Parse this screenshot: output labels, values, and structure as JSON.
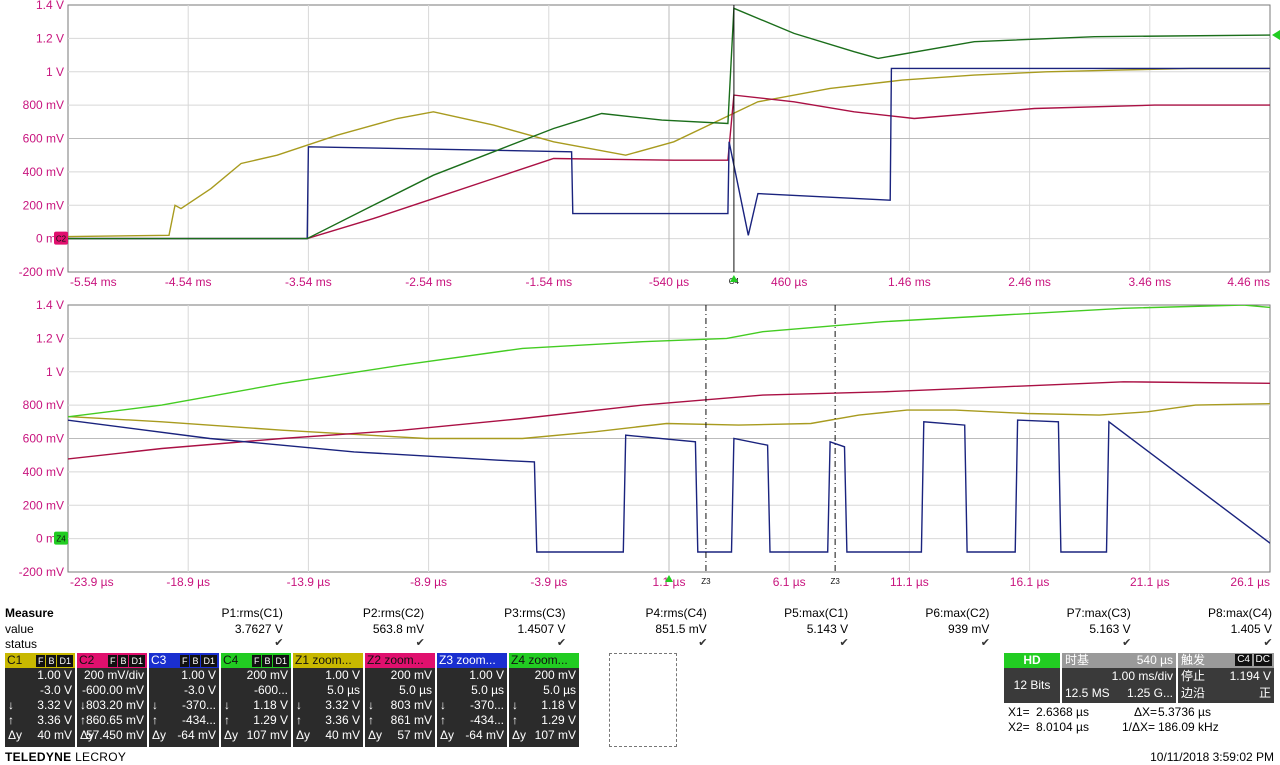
{
  "top_panel": {
    "y_labels": [
      "1.4 V",
      "1.2 V",
      "1 V",
      "800 mV",
      "600 mV",
      "400 mV",
      "200 mV",
      "0 mV",
      "-200 mV"
    ],
    "x_labels": [
      "-5.54 ms",
      "-4.54 ms",
      "-3.54 ms",
      "-2.54 ms",
      "-1.54 ms",
      "-540 µs",
      "460 µs",
      "1.46 ms",
      "2.46 ms",
      "3.46 ms",
      "4.46 ms"
    ],
    "ground_marker": "C2",
    "cursor_labels": [
      "C4"
    ]
  },
  "bottom_panel": {
    "y_labels": [
      "1.4 V",
      "1.2 V",
      "1 V",
      "800 mV",
      "600 mV",
      "400 mV",
      "200 mV",
      "0 mV",
      "-200 mV"
    ],
    "x_labels": [
      "-23.9 µs",
      "-18.9 µs",
      "-13.9 µs",
      "-8.9 µs",
      "-3.9 µs",
      "1.1 µs",
      "6.1 µs",
      "11.1 µs",
      "16.1 µs",
      "21.1 µs",
      "26.1 µs"
    ],
    "ground_marker": "Z4",
    "cursor_labels": [
      "Z3",
      "Z3"
    ]
  },
  "chart_data": [
    {
      "type": "line",
      "title": "",
      "x_unit": "ms",
      "xlim": [
        -5.54,
        4.46
      ],
      "ylim": [
        -0.2,
        1.4
      ],
      "grid": true,
      "series": [
        {
          "name": "C1",
          "color": "#a89b1f",
          "x": [
            -5.8,
            -4.7,
            -4.65,
            -4.6,
            -4.35,
            -4.1,
            -3.8,
            -3.3,
            -2.8,
            -2.5,
            -2.0,
            -1.5,
            -0.9,
            -0.5,
            0.2,
            0.8,
            1.4,
            2.0,
            2.6,
            3.2,
            3.8,
            4.5
          ],
          "y": [
            0.01,
            0.02,
            0.2,
            0.18,
            0.3,
            0.45,
            0.5,
            0.62,
            0.72,
            0.76,
            0.68,
            0.58,
            0.5,
            0.58,
            0.82,
            0.9,
            0.95,
            0.98,
            1.0,
            1.01,
            1.02,
            1.02
          ]
        },
        {
          "name": "C2",
          "color": "#aa1044",
          "x": [
            -5.8,
            -3.55,
            -3.0,
            -2.5,
            -2.0,
            -1.5,
            -0.5,
            -0.05,
            0.0,
            0.5,
            1.0,
            1.5,
            2.5,
            3.5,
            4.5
          ],
          "y": [
            0.0,
            0.0,
            0.12,
            0.24,
            0.36,
            0.48,
            0.47,
            0.47,
            0.86,
            0.82,
            0.76,
            0.72,
            0.78,
            0.8,
            0.8
          ]
        },
        {
          "name": "C3",
          "color": "#1a237e",
          "x": [
            -5.8,
            -3.55,
            -3.54,
            -1.35,
            -1.34,
            -0.05,
            -0.04,
            0.12,
            0.2,
            1.3,
            1.31,
            4.5
          ],
          "y": [
            0.0,
            0.0,
            0.55,
            0.52,
            0.15,
            0.15,
            0.58,
            0.02,
            0.27,
            0.23,
            1.02,
            1.02
          ]
        },
        {
          "name": "C4",
          "color": "#1b6e1b",
          "x": [
            -5.8,
            -3.55,
            -3.0,
            -2.5,
            -2.0,
            -1.5,
            -1.1,
            -0.6,
            -0.05,
            0.0,
            0.5,
            1.0,
            1.2,
            2.0,
            3.0,
            4.5
          ],
          "y": [
            0.0,
            0.0,
            0.2,
            0.38,
            0.52,
            0.66,
            0.75,
            0.71,
            0.69,
            1.38,
            1.23,
            1.12,
            1.08,
            1.18,
            1.21,
            1.22
          ]
        }
      ]
    },
    {
      "type": "line",
      "title": "",
      "x_unit": "µs",
      "xlim": [
        -23.9,
        26.1
      ],
      "ylim": [
        -0.2,
        1.4
      ],
      "grid": true,
      "series": [
        {
          "name": "Z1",
          "color": "#a89b1f",
          "x": [
            -25,
            -20,
            -15,
            -9,
            -5,
            -2,
            1,
            4,
            7,
            9,
            11,
            13,
            16,
            19,
            21,
            23,
            26.5
          ],
          "y": [
            0.74,
            0.7,
            0.65,
            0.6,
            0.6,
            0.64,
            0.69,
            0.68,
            0.69,
            0.74,
            0.77,
            0.77,
            0.75,
            0.74,
            0.76,
            0.8,
            0.81
          ]
        },
        {
          "name": "Z2",
          "color": "#aa1044",
          "x": [
            -25,
            -20,
            -15,
            -10,
            -5,
            0,
            5,
            10,
            15,
            20,
            26.5
          ],
          "y": [
            0.46,
            0.54,
            0.6,
            0.65,
            0.72,
            0.8,
            0.86,
            0.88,
            0.91,
            0.94,
            0.93
          ]
        },
        {
          "name": "Z3",
          "color": "#1a237e",
          "x": [
            -25,
            -18,
            -12,
            -6,
            -4.5,
            -4.4,
            -0.8,
            -0.7,
            2.2,
            2.3,
            3.7,
            3.8,
            5.2,
            5.3,
            7.7,
            7.8,
            8.4,
            8.5,
            11.6,
            11.7,
            13.4,
            13.5,
            15.5,
            15.6,
            17.3,
            17.4,
            19.3,
            19.4,
            26.5
          ],
          "y": [
            0.73,
            0.6,
            0.52,
            0.47,
            0.46,
            -0.08,
            -0.08,
            0.62,
            0.58,
            -0.08,
            -0.08,
            0.6,
            0.56,
            -0.08,
            -0.08,
            0.58,
            0.55,
            -0.08,
            -0.08,
            0.7,
            0.68,
            -0.08,
            -0.08,
            0.71,
            0.7,
            -0.08,
            -0.08,
            0.7,
            -0.07
          ]
        },
        {
          "name": "Z4",
          "color": "#44cc22",
          "x": [
            -25,
            -20,
            -15,
            -10,
            -5,
            0,
            3.5,
            5,
            10,
            15,
            20,
            25,
            26.5
          ],
          "y": [
            0.71,
            0.8,
            0.93,
            1.04,
            1.14,
            1.18,
            1.2,
            1.24,
            1.3,
            1.34,
            1.38,
            1.4,
            1.38
          ]
        }
      ]
    }
  ],
  "measure": {
    "title": "Measure",
    "row_value": "value",
    "row_status": "status",
    "params": [
      {
        "name": "P1:rms(C1)",
        "value": "3.7627 V"
      },
      {
        "name": "P2:rms(C2)",
        "value": "563.8 mV"
      },
      {
        "name": "P3:rms(C3)",
        "value": "1.4507 V"
      },
      {
        "name": "P4:rms(C4)",
        "value": "851.5 mV"
      },
      {
        "name": "P5:max(C1)",
        "value": "5.143 V"
      },
      {
        "name": "P6:max(C2)",
        "value": "939 mV"
      },
      {
        "name": "P7:max(C3)",
        "value": "5.163 V"
      },
      {
        "name": "P8:max(C4)",
        "value": "1.405 V"
      }
    ],
    "status_mark": "✔"
  },
  "descriptors": [
    {
      "name": "C1",
      "color": "#c8b800",
      "flags": [
        "F",
        "B",
        "D1"
      ],
      "scale": "1.00 V",
      "offset": "-3.0 V",
      "down": "3.32 V",
      "up": "3.36 V",
      "dy_label": "Δy",
      "dy": "40 mV"
    },
    {
      "name": "C2",
      "color": "#e0106e",
      "flags": [
        "F",
        "B",
        "D1"
      ],
      "scale": "200 mV/div",
      "offset": "-600.00 mV",
      "down": "803.20 mV",
      "up": "860.65 mV",
      "dy_label": "Δy",
      "dy": "57.450 mV"
    },
    {
      "name": "C3",
      "color": "#1a2fd0",
      "flags": [
        "F",
        "B",
        "D1"
      ],
      "scale": "1.00 V",
      "offset": "-3.0 V",
      "down": "-370...",
      "up": "-434...",
      "dy_label": "Δy",
      "dy": "-64 mV"
    },
    {
      "name": "C4",
      "color": "#22cc22",
      "flags": [
        "F",
        "B",
        "D1"
      ],
      "scale": "200 mV",
      "offset": "-600...",
      "down": "1.18 V",
      "up": "1.29 V",
      "dy_label": "Δy",
      "dy": "107 mV"
    },
    {
      "name": "Z1 zoom...",
      "color": "#c8b800",
      "flags": [],
      "scale": "1.00 V",
      "offset": "5.0 µs",
      "down": "3.32 V",
      "up": "3.36 V",
      "dy_label": "Δy",
      "dy": "40 mV"
    },
    {
      "name": "Z2 zoom...",
      "color": "#e0106e",
      "flags": [],
      "scale": "200 mV",
      "offset": "5.0 µs",
      "down": "803 mV",
      "up": "861 mV",
      "dy_label": "Δy",
      "dy": "57 mV"
    },
    {
      "name": "Z3 zoom...",
      "color": "#1a2fd0",
      "flags": [],
      "scale": "1.00 V",
      "offset": "5.0 µs",
      "down": "-370...",
      "up": "-434...",
      "dy_label": "Δy",
      "dy": "-64 mV"
    },
    {
      "name": "Z4 zoom...",
      "color": "#22cc22",
      "flags": [],
      "scale": "200 mV",
      "offset": "5.0 µs",
      "down": "1.18 V",
      "up": "1.29 V",
      "dy_label": "Δy",
      "dy": "107 mV"
    }
  ],
  "acq": {
    "hd_label": "HD",
    "bits": "12 Bits",
    "timebase_label": "时基",
    "timebase_delay": "540 µs",
    "timebase_div": "1.00 ms/div",
    "samples": "12.5 MS",
    "rate": "1.25 G...",
    "trigger_label": "触发",
    "trigger_ch": "C4",
    "trigger_coupling": "DC",
    "trigger_mode": "停止",
    "trigger_level": "1.194 V",
    "trigger_type": "边沿",
    "trigger_slope": "正"
  },
  "cursors": {
    "x1_label": "X1=",
    "x1": "2.6368 µs",
    "dx_label": "ΔX=",
    "dx": "5.3736 µs",
    "x2_label": "X2=",
    "x2": "8.0104 µs",
    "inv_dx_label": "1/ΔX=",
    "inv_dx": "186.09 kHz"
  },
  "footer": {
    "brand_bold": "TELEDYNE",
    "brand_light": "LECROY",
    "timestamp": "10/11/2018 3:59:02 PM"
  }
}
